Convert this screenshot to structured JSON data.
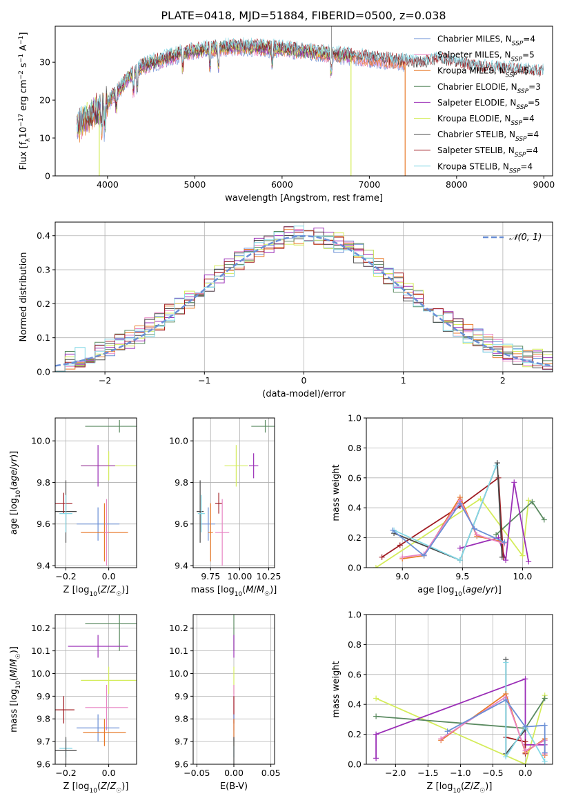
{
  "figure": {
    "title": "PLATE=0418, MJD=51884, FIBERID=0500, z=0.038"
  },
  "colors": {
    "Chabrier MILES": "#6a8fd6",
    "Salpeter MILES": "#e884c4",
    "Kroupa MILES": "#e87a2a",
    "Chabrier ELODIE": "#5a8a60",
    "Salpeter ELODIE": "#9b2fb7",
    "Kroupa ELODIE": "#d4ec5a",
    "Chabrier STELIB": "#4a4a4a",
    "Salpeter STELIB": "#a01c22",
    "Kroupa STELIB": "#84d8e6"
  },
  "chart_data": [
    {
      "id": "spectrum",
      "type": "line",
      "xlabel": "wavelength [Angstrom, rest frame]",
      "ylabel": "Flux [f_λ10^-17 erg cm^-2 s^-1 A^-1]",
      "xlim": [
        3400,
        9100
      ],
      "ylim": [
        0,
        39.5
      ],
      "xticks": [
        4000,
        5000,
        6000,
        7000,
        8000,
        9000
      ],
      "yticks": [
        0,
        10,
        20,
        30
      ],
      "grid": false,
      "legend_position": "top-right",
      "legend": [
        {
          "name": "Chabrier MILES",
          "nssp": "4"
        },
        {
          "name": "Salpeter MILES",
          "nssp": "5"
        },
        {
          "name": "Kroupa MILES",
          "nssp": "5"
        },
        {
          "name": "Chabrier ELODIE",
          "nssp": "3"
        },
        {
          "name": "Salpeter ELODIE",
          "nssp": "5"
        },
        {
          "name": "Kroupa ELODIE",
          "nssp": "4"
        },
        {
          "name": "Chabrier STELIB",
          "nssp": "4"
        },
        {
          "name": "Salpeter STELIB",
          "nssp": "4"
        },
        {
          "name": "Kroupa STELIB",
          "nssp": "4"
        }
      ],
      "continuum": {
        "x": [
          3650,
          3800,
          3950,
          4100,
          4250,
          4400,
          4600,
          4800,
          5000,
          5200,
          5400,
          5600,
          5800,
          6000,
          6200,
          6400,
          6600,
          6800,
          7000,
          7200,
          7400,
          7600,
          7800,
          8000,
          8200,
          8400,
          8600,
          8800,
          9000
        ],
        "y": [
          13,
          16,
          18,
          22,
          26,
          29,
          30.5,
          32,
          33,
          33.5,
          34,
          34,
          33.8,
          33.5,
          33,
          32.5,
          32,
          31.5,
          31,
          30.5,
          30,
          29.5,
          30.5,
          29.5,
          28.5,
          28.2,
          27.8,
          27.5,
          27
        ]
      },
      "drops": [
        {
          "series": "Kroupa ELODIE",
          "x": 3905
        },
        {
          "series": "Kroupa ELODIE",
          "x": 6790
        },
        {
          "series": "Kroupa MILES",
          "x": 7410
        }
      ],
      "spike": {
        "x": 6565,
        "y": 39.5
      }
    },
    {
      "id": "residuals",
      "type": "bar",
      "xlabel": "(data-model)/error",
      "ylabel": "Normed distribution",
      "xlim": [
        -2.5,
        2.5
      ],
      "ylim": [
        0,
        0.44
      ],
      "xticks": [
        -2,
        -1,
        0,
        1,
        2
      ],
      "yticks": [
        0.0,
        0.1,
        0.2,
        0.3,
        0.4
      ],
      "grid": true,
      "legend_position": "top-right",
      "legend": [
        {
          "name": "𝒩(0, 1)"
        }
      ],
      "bin_width": 0.1,
      "reference": {
        "mean": 0,
        "sigma": 1
      }
    },
    {
      "id": "age-vs-Z",
      "type": "scatter",
      "xlabel": "Z [log10(Z/Z☉)]",
      "ylabel": "age [log10(age/yr)]",
      "xlim": [
        -0.25,
        0.13
      ],
      "ylim": [
        9.39,
        10.11
      ],
      "xticks": [
        -0.2,
        0.0
      ],
      "yticks": [
        9.4,
        9.6,
        9.8,
        10.0
      ],
      "grid": true,
      "points": [
        {
          "series": "Chabrier ELODIE",
          "x": 0.05,
          "y": 10.07,
          "xerr": 0.16,
          "yerr": 0.03
        },
        {
          "series": "Kroupa ELODIE",
          "x": 0.0,
          "y": 9.88,
          "xerr": 0.13,
          "yerr": 0.07
        },
        {
          "series": "Salpeter ELODIE",
          "x": -0.05,
          "y": 9.88,
          "xerr": 0.08,
          "yerr": 0.1
        },
        {
          "series": "Chabrier STELIB",
          "x": -0.2,
          "y": 9.66,
          "xerr": 0.05,
          "yerr": 0.15
        },
        {
          "series": "Salpeter STELIB",
          "x": -0.21,
          "y": 9.7,
          "xerr": 0.04,
          "yerr": 0.05
        },
        {
          "series": "Kroupa STELIB",
          "x": -0.2,
          "y": 9.65,
          "xerr": 0.03,
          "yerr": 0.09
        },
        {
          "series": "Chabrier MILES",
          "x": -0.05,
          "y": 9.6,
          "xerr": 0.1,
          "yerr": 0.08
        },
        {
          "series": "Kroupa MILES",
          "x": -0.02,
          "y": 9.56,
          "xerr": 0.11,
          "yerr": 0.14
        },
        {
          "series": "Salpeter MILES",
          "x": -0.01,
          "y": 9.56,
          "xerr": 0.01,
          "yerr": 0.16
        }
      ]
    },
    {
      "id": "age-vs-mass",
      "type": "scatter",
      "xlabel": "mass [log10(M/M☉)]",
      "ylabel": "",
      "xlim": [
        9.6,
        10.3
      ],
      "ylim": [
        9.39,
        10.11
      ],
      "xticks": [
        9.75,
        10.0,
        10.25
      ],
      "yticks": [
        9.4,
        9.6,
        9.8,
        10.0
      ],
      "grid": true,
      "points": [
        {
          "series": "Chabrier ELODIE",
          "x": 10.22,
          "y": 10.07,
          "xerr": 0.12,
          "yerr": 0.03
        },
        {
          "series": "Kroupa ELODIE",
          "x": 9.97,
          "y": 9.88,
          "xerr": 0.1,
          "yerr": 0.1
        },
        {
          "series": "Salpeter ELODIE",
          "x": 10.12,
          "y": 9.88,
          "xerr": 0.04,
          "yerr": 0.06
        },
        {
          "series": "Chabrier STELIB",
          "x": 9.66,
          "y": 9.66,
          "xerr": 0.03,
          "yerr": 0.15
        },
        {
          "series": "Salpeter STELIB",
          "x": 9.82,
          "y": 9.7,
          "xerr": 0.03,
          "yerr": 0.05
        },
        {
          "series": "Kroupa STELIB",
          "x": 9.67,
          "y": 9.65,
          "xerr": 0.03,
          "yerr": 0.09
        },
        {
          "series": "Chabrier MILES",
          "x": 9.73,
          "y": 9.6,
          "xerr": 0.06,
          "yerr": 0.08
        },
        {
          "series": "Kroupa MILES",
          "x": 9.75,
          "y": 9.56,
          "xerr": 0.02,
          "yerr": 0.14
        },
        {
          "series": "Salpeter MILES",
          "x": 9.85,
          "y": 9.56,
          "xerr": 0.06,
          "yerr": 0.16
        }
      ]
    },
    {
      "id": "mass-weight-vs-age",
      "type": "line",
      "xlabel": "age [log10(age/yr)]",
      "ylabel": "mass weight",
      "xlim": [
        8.7,
        10.25
      ],
      "ylim": [
        0,
        1.0
      ],
      "xticks": [
        9.0,
        9.5,
        10.0
      ],
      "yticks": [
        0.0,
        0.2,
        0.4,
        0.6,
        0.8,
        1.0
      ],
      "grid": true,
      "series": [
        {
          "name": "Kroupa ELODIE",
          "x": [
            8.78,
            9.65,
            10.0,
            10.05
          ],
          "y": [
            0.0,
            0.46,
            0.08,
            0.45
          ]
        },
        {
          "name": "Chabrier ELODIE",
          "x": [
            9.78,
            10.08,
            10.18
          ],
          "y": [
            0.22,
            0.44,
            0.32
          ]
        },
        {
          "name": "Salpeter ELODIE",
          "x": [
            9.48,
            9.8,
            9.86,
            9.93,
            10.05
          ],
          "y": [
            0.13,
            0.2,
            0.05,
            0.57,
            0.04
          ]
        },
        {
          "name": "Salpeter STELIB",
          "x": [
            8.83,
            8.98,
            9.48,
            9.8,
            9.84
          ],
          "y": [
            0.07,
            0.15,
            0.41,
            0.6,
            0.07
          ]
        },
        {
          "name": "Chabrier STELIB",
          "x": [
            8.93,
            9.48,
            9.79,
            9.83
          ],
          "y": [
            0.23,
            0.05,
            0.7,
            0.07
          ]
        },
        {
          "name": "Kroupa STELIB",
          "x": [
            8.93,
            9.48,
            9.78
          ],
          "y": [
            0.25,
            0.05,
            0.68
          ]
        },
        {
          "name": "Kroupa MILES",
          "x": [
            9.0,
            9.18,
            9.48,
            9.62,
            9.85
          ],
          "y": [
            0.06,
            0.08,
            0.47,
            0.21,
            0.17
          ]
        },
        {
          "name": "Salpeter MILES",
          "x": [
            9.0,
            9.18,
            9.48,
            9.62,
            9.85
          ],
          "y": [
            0.07,
            0.09,
            0.45,
            0.22,
            0.16
          ]
        },
        {
          "name": "Chabrier MILES",
          "x": [
            8.92,
            9.18,
            9.48,
            9.6,
            9.85
          ],
          "y": [
            0.25,
            0.08,
            0.43,
            0.26,
            0.17
          ]
        }
      ]
    },
    {
      "id": "mass-vs-Z",
      "type": "scatter",
      "xlabel": "Z [log10(Z/Z☉)]",
      "ylabel": "mass [log10(M/M☉)]",
      "xlim": [
        -0.25,
        0.13
      ],
      "ylim": [
        9.6,
        10.26
      ],
      "xticks": [
        -0.2,
        0.0
      ],
      "yticks": [
        9.6,
        9.7,
        9.8,
        9.9,
        10.0,
        10.1,
        10.2
      ],
      "grid": true,
      "points": [
        {
          "series": "Chabrier ELODIE",
          "x": 0.05,
          "y": 10.22,
          "xerr": 0.16,
          "yerr": 0.12
        },
        {
          "series": "Salpeter ELODIE",
          "x": -0.05,
          "y": 10.12,
          "xerr": 0.14,
          "yerr": 0.05
        },
        {
          "series": "Kroupa ELODIE",
          "x": 0.0,
          "y": 9.97,
          "xerr": 0.13,
          "yerr": 0.06
        },
        {
          "series": "Salpeter MILES",
          "x": -0.01,
          "y": 9.85,
          "xerr": 0.1,
          "yerr": 0.1
        },
        {
          "series": "Salpeter STELIB",
          "x": -0.21,
          "y": 9.84,
          "xerr": 0.05,
          "yerr": 0.06
        },
        {
          "series": "Chabrier MILES",
          "x": -0.05,
          "y": 9.76,
          "xerr": 0.1,
          "yerr": 0.06
        },
        {
          "series": "Kroupa MILES",
          "x": -0.02,
          "y": 9.74,
          "xerr": 0.1,
          "yerr": 0.06
        },
        {
          "series": "Kroupa STELIB",
          "x": -0.2,
          "y": 9.67,
          "xerr": 0.03,
          "yerr": 0.04
        },
        {
          "series": "Chabrier STELIB",
          "x": -0.2,
          "y": 9.66,
          "xerr": 0.05,
          "yerr": 0.06
        }
      ]
    },
    {
      "id": "mass-vs-ebv",
      "type": "scatter",
      "xlabel": "E(B-V)",
      "ylabel": "",
      "xlim": [
        -0.055,
        0.055
      ],
      "ylim": [
        9.6,
        10.26
      ],
      "xticks": [
        -0.05,
        0.0,
        0.05
      ],
      "yticks": [
        9.6,
        9.7,
        9.8,
        9.9,
        10.0,
        10.1,
        10.2
      ],
      "grid": true,
      "points": [
        {
          "series": "Chabrier ELODIE",
          "x": 0,
          "y": 10.22,
          "yerr": 0.12
        },
        {
          "series": "Salpeter ELODIE",
          "x": 0,
          "y": 10.12,
          "yerr": 0.05
        },
        {
          "series": "Kroupa ELODIE",
          "x": 0,
          "y": 9.97,
          "yerr": 0.06
        },
        {
          "series": "Salpeter MILES",
          "x": 0,
          "y": 9.85,
          "yerr": 0.1
        },
        {
          "series": "Salpeter STELIB",
          "x": 0,
          "y": 9.84,
          "yerr": 0.06
        },
        {
          "series": "Chabrier MILES",
          "x": 0,
          "y": 9.76,
          "yerr": 0.06
        },
        {
          "series": "Kroupa MILES",
          "x": 0,
          "y": 9.74,
          "yerr": 0.06
        },
        {
          "series": "Kroupa STELIB",
          "x": 0,
          "y": 9.67,
          "yerr": 0.04
        },
        {
          "series": "Chabrier STELIB",
          "x": 0,
          "y": 9.66,
          "yerr": 0.06
        }
      ]
    },
    {
      "id": "mass-weight-vs-Z",
      "type": "line",
      "xlabel": "Z [log10(Z/Z☉)]",
      "ylabel": "mass weight",
      "xlim": [
        -2.45,
        0.42
      ],
      "ylim": [
        0,
        1.0
      ],
      "xticks": [
        -2.0,
        -1.5,
        -1.0,
        -0.5,
        0.0
      ],
      "yticks": [
        0.0,
        0.2,
        0.4,
        0.6,
        0.8,
        1.0
      ],
      "grid": true,
      "series": [
        {
          "name": "Kroupa ELODIE",
          "x": [
            -2.3,
            0.0,
            0.3
          ],
          "y": [
            0.44,
            0.0,
            0.46
          ]
        },
        {
          "name": "Chabrier ELODIE",
          "x": [
            -2.3,
            0.0,
            0.3
          ],
          "y": [
            0.32,
            0.24,
            0.44
          ]
        },
        {
          "name": "Salpeter ELODIE",
          "x": [
            -2.3,
            -2.3,
            0.0,
            0.0,
            0.3
          ],
          "y": [
            0.04,
            0.2,
            0.57,
            0.13,
            0.13
          ]
        },
        {
          "name": "Salpeter STELIB",
          "x": [
            -0.3,
            0.0,
            0.0
          ],
          "y": [
            0.18,
            0.15,
            0.07
          ]
        },
        {
          "name": "Chabrier STELIB",
          "x": [
            -0.3,
            -0.3,
            0.0
          ],
          "y": [
            0.7,
            0.07,
            0.23
          ]
        },
        {
          "name": "Kroupa STELIB",
          "x": [
            -0.3,
            -0.3,
            0.0,
            0.3
          ],
          "y": [
            0.68,
            0.05,
            0.25,
            0.02
          ]
        },
        {
          "name": "Kroupa MILES",
          "x": [
            -1.3,
            -0.3,
            0.0,
            0.3,
            0.3
          ],
          "y": [
            0.16,
            0.47,
            0.08,
            0.17,
            0.06
          ]
        },
        {
          "name": "Salpeter MILES",
          "x": [
            -1.3,
            -0.3,
            0.0,
            0.3,
            0.3
          ],
          "y": [
            0.17,
            0.45,
            0.09,
            0.16,
            0.07
          ]
        },
        {
          "name": "Chabrier MILES",
          "x": [
            -1.2,
            -0.3,
            0.0,
            0.3,
            0.3
          ],
          "y": [
            0.22,
            0.43,
            0.25,
            0.26,
            0.08
          ]
        }
      ]
    }
  ]
}
